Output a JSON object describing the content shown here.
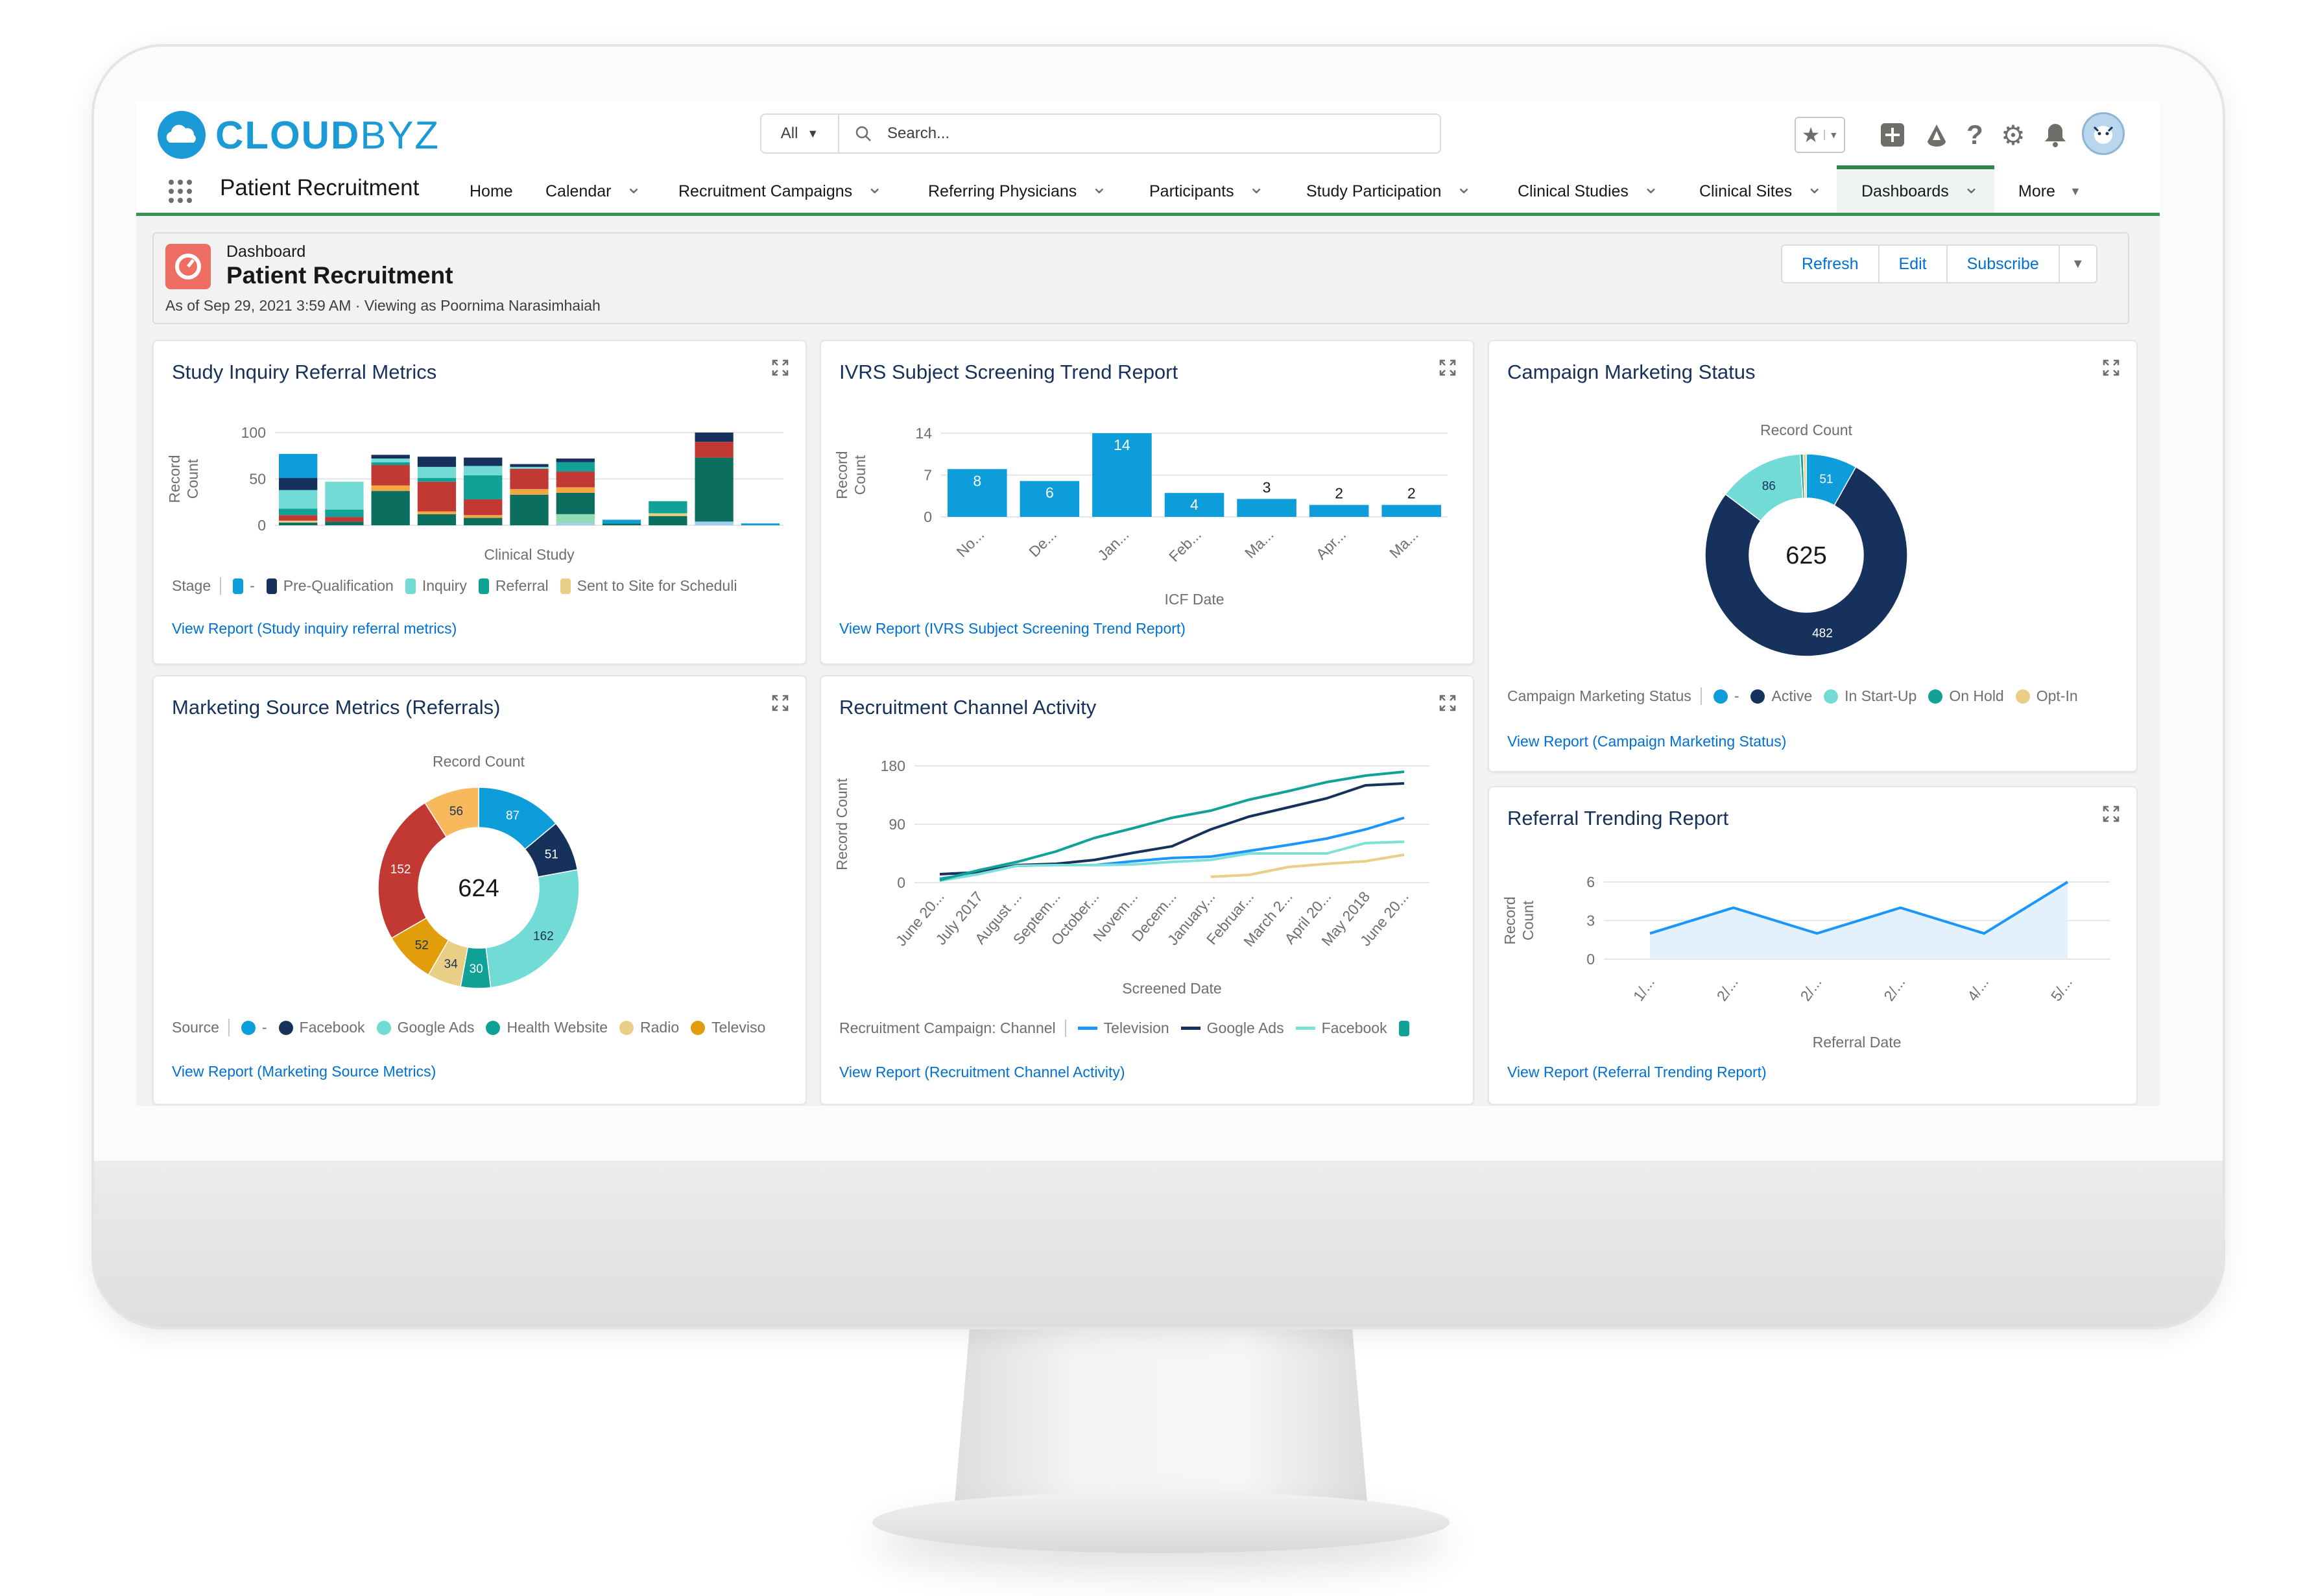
{
  "app": {
    "logo_bold": "CLOUD",
    "logo_light": "BYZ",
    "name": "Patient Recruitment"
  },
  "search": {
    "scope": "All",
    "placeholder": "Search..."
  },
  "header_icons": [
    "favorites-star-icon",
    "global-create-plus-icon",
    "trailhead-icon",
    "help-icon",
    "setup-gear-icon",
    "notifications-bell-icon",
    "user-avatar"
  ],
  "header_help_glyph": "?",
  "nav": {
    "items": [
      {
        "label": "Home",
        "dropdown": false
      },
      {
        "label": "Calendar",
        "dropdown": true
      },
      {
        "label": "Recruitment Campaigns",
        "dropdown": true
      },
      {
        "label": "Referring Physicians",
        "dropdown": true
      },
      {
        "label": "Participants",
        "dropdown": true
      },
      {
        "label": "Study Participation",
        "dropdown": true
      },
      {
        "label": "Clinical Studies",
        "dropdown": true
      },
      {
        "label": "Clinical Sites",
        "dropdown": true
      },
      {
        "label": "Dashboards",
        "dropdown": true,
        "active": true
      },
      {
        "label": "More",
        "dropdown": true
      }
    ]
  },
  "dashboard": {
    "type_label": "Dashboard",
    "title": "Patient Recruitment",
    "subtitle": "As of Sep 29, 2021 3:59 AM · Viewing as Poornima Narasimhaiah",
    "buttons": {
      "refresh": "Refresh",
      "edit": "Edit",
      "subscribe": "Subscribe"
    }
  },
  "colors": {
    "brand": "#1b9ad6",
    "link": "#0070d2",
    "nav_active": "#2e844a",
    "dashboard_icon": "#ef6e64"
  },
  "cards": [
    {
      "link": "View Report (Study inquiry referral metrics)"
    },
    {
      "link": "View Report (IVRS Subject Screening Trend Report)"
    },
    {
      "link": "View Report (Campaign Marketing Status)"
    },
    {
      "link": "View Report (Marketing Source Metrics)"
    },
    {
      "link": "View Report (Recruitment Channel Activity)"
    },
    {
      "link": "View Report (Referral Trending Report)"
    }
  ],
  "chart_data": [
    {
      "type": "bar",
      "stacked": true,
      "title": "Study Inquiry Referral Metrics",
      "xlabel": "Clinical Study",
      "ylabel": "Record Count",
      "ylim": [
        0,
        100
      ],
      "yticks": [
        0,
        50,
        100
      ],
      "grid": true,
      "legend_title": "Stage",
      "legend_position": "bottom",
      "series": [
        {
          "color": "#9fcdf0",
          "values": [
            0,
            0,
            0,
            0,
            0,
            0,
            2,
            0,
            0,
            4,
            0
          ]
        },
        {
          "color": "#93dbb4",
          "values": [
            0,
            0,
            0,
            0,
            0,
            0,
            10,
            0,
            0,
            0,
            0
          ]
        },
        {
          "color": "#0b6e5f",
          "values": [
            3,
            4,
            37,
            12,
            8,
            33,
            23,
            2,
            10,
            69,
            0
          ]
        },
        {
          "name": "Sent to Site for Scheduli",
          "color": "#e8cf85",
          "values": [
            2,
            0,
            0,
            0,
            0,
            0,
            0,
            0,
            3,
            0,
            0
          ]
        },
        {
          "color": "#f2a742",
          "values": [
            0,
            0,
            6,
            3,
            3,
            6,
            6,
            0,
            0,
            0,
            0
          ]
        },
        {
          "color": "#c23934",
          "values": [
            6,
            5,
            22,
            32,
            17,
            22,
            17,
            0,
            0,
            17,
            0
          ]
        },
        {
          "name": "Referral",
          "color": "#10a296",
          "values": [
            7,
            8,
            3,
            4,
            26,
            0,
            10,
            0,
            13,
            0,
            0
          ]
        },
        {
          "name": "Inquiry",
          "color": "#72dbd6",
          "values": [
            20,
            30,
            4,
            12,
            10,
            2,
            0,
            0,
            0,
            0,
            0
          ]
        },
        {
          "name": "Pre-Qualification",
          "color": "#16325c",
          "values": [
            13,
            0,
            4,
            11,
            9,
            3,
            4,
            0,
            0,
            10,
            0
          ]
        },
        {
          "name": "-",
          "color": "#0d9dda",
          "values": [
            26,
            0,
            0,
            0,
            0,
            0,
            0,
            4,
            0,
            0,
            2
          ]
        }
      ],
      "legend": [
        "-",
        "Pre-Qualification",
        "Inquiry",
        "Referral",
        "Sent to Site for Scheduli"
      ]
    },
    {
      "type": "bar",
      "title": "IVRS Subject Screening Trend Report",
      "xlabel": "ICF Date",
      "ylabel": "Record Count",
      "categories": [
        "No...",
        "De...",
        "Jan...",
        "Feb...",
        "Ma...",
        "Apr...",
        "Ma..."
      ],
      "values": [
        8,
        6,
        14,
        4,
        3,
        2,
        2
      ],
      "ylim": [
        0,
        14
      ],
      "yticks": [
        0,
        7,
        14
      ],
      "grid": true,
      "color": "#0d9dda"
    },
    {
      "type": "pie",
      "donut": true,
      "title": "Campaign Marketing Status",
      "measure_label": "Record Count",
      "total": "625",
      "legend_title": "Campaign Marketing Status",
      "legend_position": "bottom",
      "slices": [
        {
          "label": "-",
          "value": 51,
          "color": "#0d9dda",
          "show_label": true
        },
        {
          "label": "Active",
          "value": 482,
          "color": "#16325c",
          "show_label": true
        },
        {
          "label": "In Start-Up",
          "value": 86,
          "color": "#72dbd6",
          "show_label": true
        },
        {
          "label": "On Hold",
          "value": 3,
          "color": "#10a296",
          "show_label": false
        },
        {
          "label": "Opt-In",
          "value": 3,
          "color": "#e8cf85",
          "show_label": false
        }
      ]
    },
    {
      "type": "pie",
      "donut": true,
      "title": "Marketing Source Metrics (Referrals)",
      "measure_label": "Record Count",
      "total": "624",
      "legend_title": "Source",
      "legend_position": "bottom",
      "slices": [
        {
          "label": "-",
          "value": 87,
          "color": "#0d9dda",
          "show_label": true
        },
        {
          "label": "Facebook",
          "value": 51,
          "color": "#16325c",
          "show_label": true
        },
        {
          "label": "Google Ads",
          "value": 162,
          "color": "#72dbd6",
          "show_label": true
        },
        {
          "label": "Health Website",
          "value": 30,
          "color": "#10a296",
          "show_label": true
        },
        {
          "label": "Radio",
          "value": 34,
          "color": "#e8cf85",
          "show_label": true
        },
        {
          "label": "Televiso",
          "value": 52,
          "color": "#e29d0a",
          "show_label": true
        },
        {
          "value": 152,
          "color": "#c23934",
          "show_label": true
        },
        {
          "value": 56,
          "color": "#f8b85c",
          "show_label": true
        }
      ]
    },
    {
      "type": "line",
      "title": "Recruitment Channel Activity",
      "xlabel": "Screened Date",
      "ylabel": "Record Count",
      "categories": [
        "June 20...",
        "July 2017",
        "August ...",
        "Septem...",
        "October...",
        "Novem...",
        "Decem...",
        "January...",
        "Februar...",
        "March 2...",
        "April 20...",
        "May 2018",
        "June 20..."
      ],
      "ylim": [
        0,
        180
      ],
      "yticks": [
        0,
        90,
        180
      ],
      "grid": true,
      "legend_title": "Recruitment Campaign: Channel",
      "legend_position": "bottom",
      "series": [
        {
          "name": "Television",
          "color": "#1b96ff",
          "values": [
            6,
            15,
            26,
            27,
            27,
            33,
            38,
            40,
            49,
            58,
            68,
            82,
            100
          ]
        },
        {
          "name": "Google Ads",
          "color": "#16325c",
          "values": [
            13,
            16,
            27,
            29,
            35,
            46,
            56,
            82,
            102,
            116,
            130,
            150,
            153
          ]
        },
        {
          "name": "Facebook",
          "color": "#7fe0d9",
          "values": [
            3,
            13,
            26,
            27,
            27,
            28,
            32,
            35,
            45,
            45,
            45,
            61,
            63
          ]
        },
        {
          "name": "",
          "color": "#10a296",
          "values": [
            4,
            19,
            32,
            48,
            69,
            84,
            100,
            111,
            128,
            141,
            155,
            165,
            171
          ]
        },
        {
          "color": "#e8cf85",
          "values": [
            null,
            null,
            null,
            null,
            null,
            null,
            null,
            9,
            12,
            24,
            29,
            33,
            43
          ]
        }
      ]
    },
    {
      "type": "area",
      "title": "Referral Trending Report",
      "xlabel": "Referral Date",
      "ylabel": "Record Count",
      "categories": [
        "1/...",
        "2/...",
        "2/...",
        "2/...",
        "4/...",
        "5/..."
      ],
      "values": [
        2,
        4,
        2,
        4,
        2,
        6
      ],
      "ylim": [
        0,
        6
      ],
      "yticks": [
        0,
        3,
        6
      ],
      "grid": true,
      "color": "#1b96ff"
    }
  ]
}
